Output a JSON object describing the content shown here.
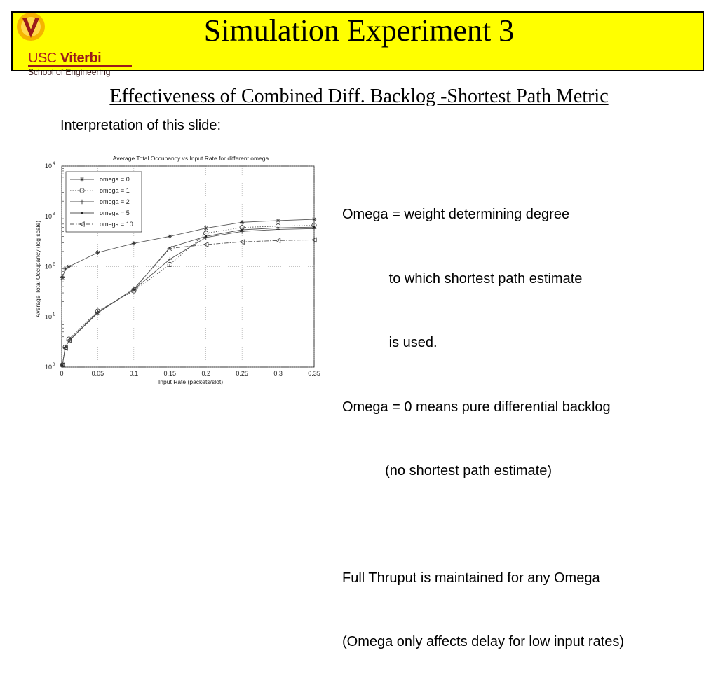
{
  "header": {
    "title": "Simulation Experiment 3",
    "logo": {
      "brand_prefix": "USC",
      "brand_name": "Viterbi",
      "school": "School of Engineering"
    },
    "background": "#ffff00"
  },
  "subtitle": "Effectiveness of Combined Diff. Backlog -Shortest Path Metric",
  "interpretation_label": "Interpretation of this slide:",
  "notes": [
    "Omega = weight determining degree",
    "            to which shortest path estimate",
    "            is used.",
    "Omega = 0 means pure differential backlog",
    "           (no shortest path estimate)",
    "",
    "Full Thruput is maintained for any Omega",
    "(Omega only affects delay for low input rates)"
  ],
  "chart_data": {
    "type": "line",
    "title": "Average Total Occupancy vs Input Rate for different omega",
    "xlabel": "Input Rate (packets/slot)",
    "ylabel": "Average Total Occupancy (log scale)",
    "xlim": [
      0,
      0.35
    ],
    "ylim": [
      1,
      10000
    ],
    "yscale": "log",
    "grid": true,
    "legend_position": "top-left",
    "x_ticks": [
      "0",
      "0.05",
      "0.1",
      "0.15",
      "0.2",
      "0.25",
      "0.3",
      "0.35"
    ],
    "y_ticks": [
      "10^0",
      "10^1",
      "10^2",
      "10^3",
      "10^4"
    ],
    "series": [
      {
        "name": "omega = 0",
        "marker": "star",
        "dash": "solid",
        "x": [
          0.001,
          0.005,
          0.01,
          0.05,
          0.1,
          0.15,
          0.2,
          0.25,
          0.3,
          0.35
        ],
        "y": [
          60,
          90,
          100,
          190,
          290,
          400,
          580,
          760,
          820,
          870
        ]
      },
      {
        "name": "omega = 1",
        "marker": "circle",
        "dash": "dotted",
        "x": [
          0.001,
          0.005,
          0.01,
          0.05,
          0.1,
          0.15,
          0.2,
          0.25,
          0.3,
          0.35
        ],
        "y": [
          1.1,
          2.5,
          3.6,
          13,
          33,
          110,
          460,
          600,
          640,
          660
        ]
      },
      {
        "name": "omega = 2",
        "marker": "plus",
        "dash": "solid",
        "x": [
          0.001,
          0.005,
          0.01,
          0.05,
          0.1,
          0.15,
          0.2,
          0.25,
          0.3,
          0.35
        ],
        "y": [
          1.1,
          2.5,
          3.3,
          12.5,
          35,
          140,
          380,
          500,
          550,
          570
        ]
      },
      {
        "name": "omega = 5",
        "marker": "dot",
        "dash": "solid",
        "x": [
          0.001,
          0.005,
          0.01,
          0.05,
          0.1,
          0.15,
          0.2,
          0.25,
          0.3,
          0.35
        ],
        "y": [
          1.1,
          2.5,
          3.3,
          12,
          35,
          240,
          400,
          540,
          590,
          610
        ]
      },
      {
        "name": "omega = 10",
        "marker": "triangle-left",
        "dash": "dashdot",
        "x": [
          0.001,
          0.005,
          0.01,
          0.05,
          0.1,
          0.15,
          0.2,
          0.25,
          0.3,
          0.35
        ],
        "y": [
          1.1,
          2.4,
          3.4,
          12,
          36,
          230,
          275,
          310,
          330,
          340
        ]
      }
    ]
  }
}
